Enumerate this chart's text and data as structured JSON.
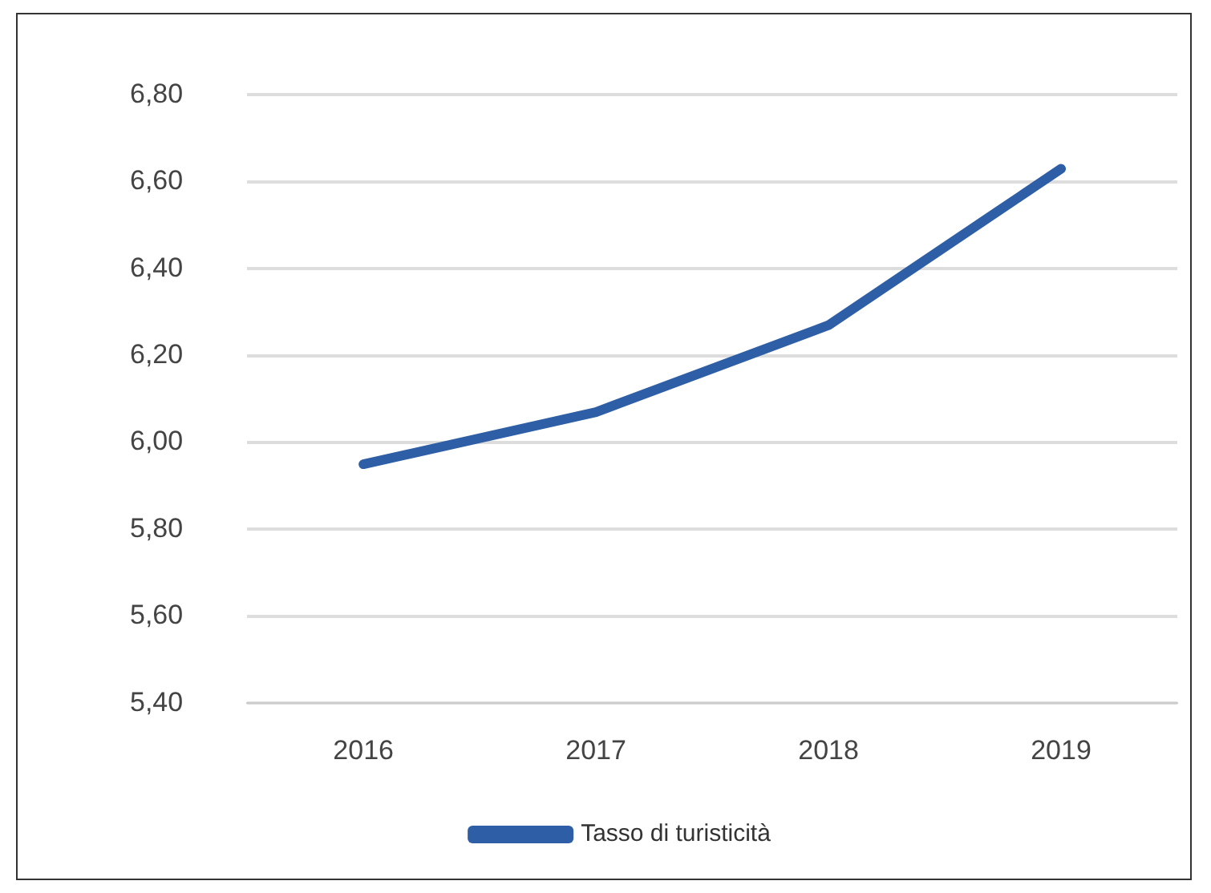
{
  "chart_data": {
    "type": "line",
    "categories": [
      "2016",
      "2017",
      "2018",
      "2019"
    ],
    "series": [
      {
        "name": "Tasso di turisticità",
        "color": "#2e5fa6",
        "values": [
          5.95,
          6.07,
          6.27,
          6.63
        ]
      }
    ],
    "ylim": [
      5.4,
      6.8
    ],
    "yticks": [
      {
        "value": 5.4,
        "label": "5,40"
      },
      {
        "value": 5.6,
        "label": "5,60"
      },
      {
        "value": 5.8,
        "label": "5,80"
      },
      {
        "value": 6.0,
        "label": "6,00"
      },
      {
        "value": 6.2,
        "label": "6,20"
      },
      {
        "value": 6.4,
        "label": "6,40"
      },
      {
        "value": 6.6,
        "label": "6,60"
      },
      {
        "value": 6.8,
        "label": "6,80"
      }
    ],
    "grid": "y",
    "legend": "bottom",
    "marker": "none",
    "line_style": "solid"
  }
}
